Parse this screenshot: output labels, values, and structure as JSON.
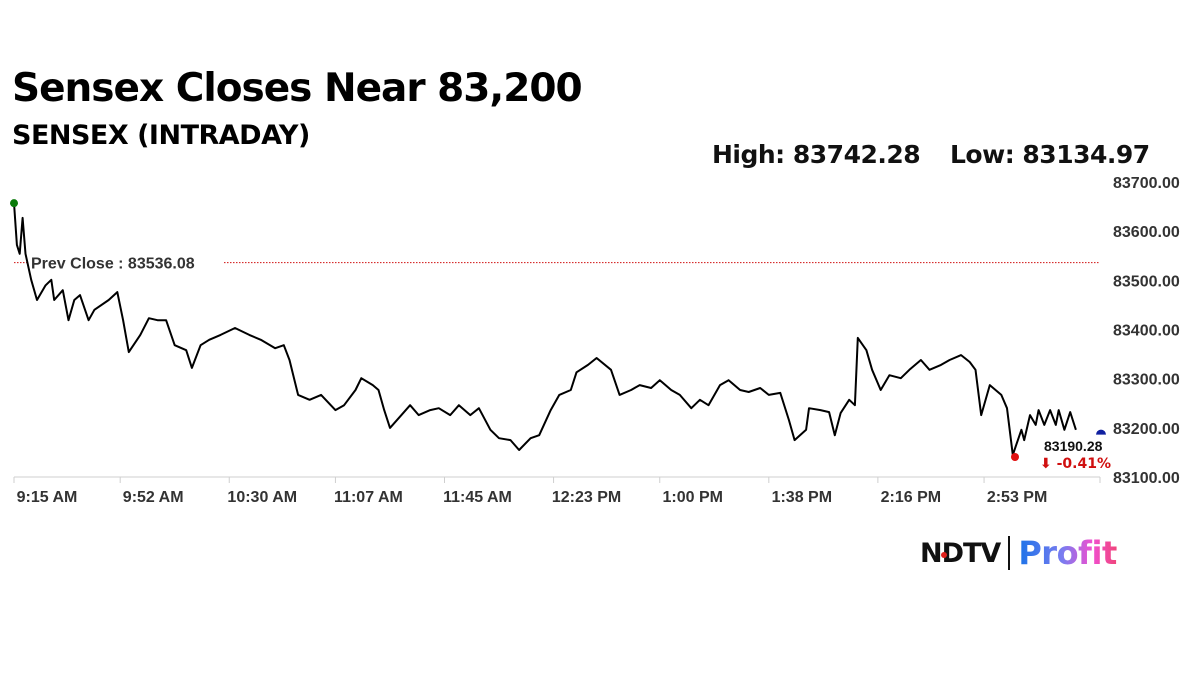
{
  "chart_data": {
    "type": "line",
    "title": "Sensex Closes Near 83,200",
    "subtitle": "SENSEX (INTRADAY)",
    "high_label": "High: 83742.28",
    "low_label": "Low: 83134.97",
    "prev_close_label": "Prev Close : 83536.08",
    "prev_close": 83536.08,
    "last_value_label": "83190.28",
    "last_change_label": "⬇ -0.41%",
    "last_value": 83190.28,
    "ylim": [
      83100,
      83700
    ],
    "yticks": [
      "83100.00",
      "83200.00",
      "83300.00",
      "83400.00",
      "83500.00",
      "83600.00",
      "83700.00"
    ],
    "xlim": [
      "9:15",
      "15:30"
    ],
    "xticks": [
      {
        "time": "9:15",
        "label": "9:15 AM"
      },
      {
        "time": "9:52",
        "label": "9:52 AM"
      },
      {
        "time": "10:30",
        "label": "10:30 AM"
      },
      {
        "time": "11:07",
        "label": "11:07 AM"
      },
      {
        "time": "11:45",
        "label": "11:45 AM"
      },
      {
        "time": "12:23",
        "label": "12:23 PM"
      },
      {
        "time": "13:00",
        "label": "1:00 PM"
      },
      {
        "time": "13:38",
        "label": "1:38 PM"
      },
      {
        "time": "14:16",
        "label": "2:16 PM"
      },
      {
        "time": "14:53",
        "label": "2:53 PM"
      }
    ],
    "grid": false,
    "colors": {
      "line": "#000000",
      "prev_close": "#d01010",
      "open_dot": "#0a7a0a",
      "low_dot": "#e01010",
      "last_dot": "#1020a0",
      "change": "#d01010"
    },
    "series": [
      {
        "x": [
          "9:15",
          "9:16",
          "9:17",
          "9:18",
          "9:19",
          "9:21",
          "9:23",
          "9:26",
          "9:28",
          "9:29",
          "9:32",
          "9:34",
          "9:36",
          "9:38",
          "9:41",
          "9:43",
          "9:48",
          "9:51",
          "9:53",
          "9:55",
          "9:59",
          "10:02",
          "10:05",
          "10:08",
          "10:11",
          "10:15",
          "10:17",
          "10:20",
          "10:23",
          "10:27",
          "10:32",
          "10:37",
          "10:41",
          "10:46",
          "10:49",
          "10:51",
          "10:54",
          "10:58",
          "11:02",
          "11:07",
          "11:10",
          "11:14",
          "11:16",
          "11:20",
          "11:22",
          "11:24",
          "11:26",
          "11:30",
          "11:33",
          "11:36",
          "11:40",
          "11:43",
          "11:47",
          "11:50",
          "11:54",
          "11:57",
          "12:01",
          "12:04",
          "12:08",
          "12:11",
          "12:15",
          "12:18",
          "12:22",
          "12:25",
          "12:29",
          "12:31",
          "12:35",
          "12:38",
          "12:43",
          "12:46",
          "12:50",
          "12:53",
          "12:57",
          "13:00",
          "13:04",
          "13:07",
          "13:11",
          "13:14",
          "13:17",
          "13:21",
          "13:24",
          "13:28",
          "13:31",
          "13:35",
          "13:38",
          "13:42",
          "13:45",
          "13:47",
          "13:51",
          "13:52",
          "13:56",
          "13:59",
          "14:01",
          "14:03",
          "14:06",
          "14:08",
          "14:09",
          "14:12",
          "14:14",
          "14:17",
          "14:20",
          "14:24",
          "14:27",
          "14:31",
          "14:34",
          "14:38",
          "14:41",
          "14:45",
          "14:48",
          "14:50",
          "14:52",
          "14:55",
          "14:59",
          "15:01",
          "15:03",
          "15:06",
          "15:07",
          "15:09",
          "15:11",
          "15:12",
          "15:14",
          "15:16",
          "15:18",
          "15:19",
          "15:21",
          "15:23",
          "15:25"
        ],
        "y": [
          83657,
          83572,
          83554,
          83627,
          83554,
          83501,
          83460,
          83490,
          83501,
          83460,
          83480,
          83419,
          83460,
          83470,
          83419,
          83440,
          83460,
          83476,
          83419,
          83354,
          83389,
          83423,
          83419,
          83419,
          83368,
          83358,
          83322,
          83368,
          83379,
          83389,
          83403,
          83389,
          83379,
          83362,
          83368,
          83338,
          83267,
          83257,
          83267,
          83236,
          83246,
          83277,
          83301,
          83287,
          83277,
          83236,
          83200,
          83226,
          83246,
          83226,
          83236,
          83240,
          83226,
          83246,
          83226,
          83240,
          83196,
          83179,
          83175,
          83155,
          83179,
          83185,
          83236,
          83267,
          83277,
          83313,
          83328,
          83342,
          83318,
          83267,
          83277,
          83287,
          83281,
          83297,
          83277,
          83267,
          83240,
          83257,
          83246,
          83287,
          83297,
          83277,
          83273,
          83281,
          83267,
          83271,
          83216,
          83175,
          83196,
          83240,
          83236,
          83232,
          83185,
          83230,
          83257,
          83246,
          83383,
          83358,
          83318,
          83277,
          83307,
          83301,
          83318,
          83338,
          83318,
          83328,
          83338,
          83348,
          83334,
          83318,
          83226,
          83287,
          83267,
          83240,
          83145,
          83196,
          83175,
          83226,
          83206,
          83236,
          83206,
          83236,
          83206,
          83236,
          83196,
          83232,
          83196
        ]
      }
    ]
  },
  "brand": {
    "logo_left": "NDTV",
    "logo_right": "Profit"
  }
}
